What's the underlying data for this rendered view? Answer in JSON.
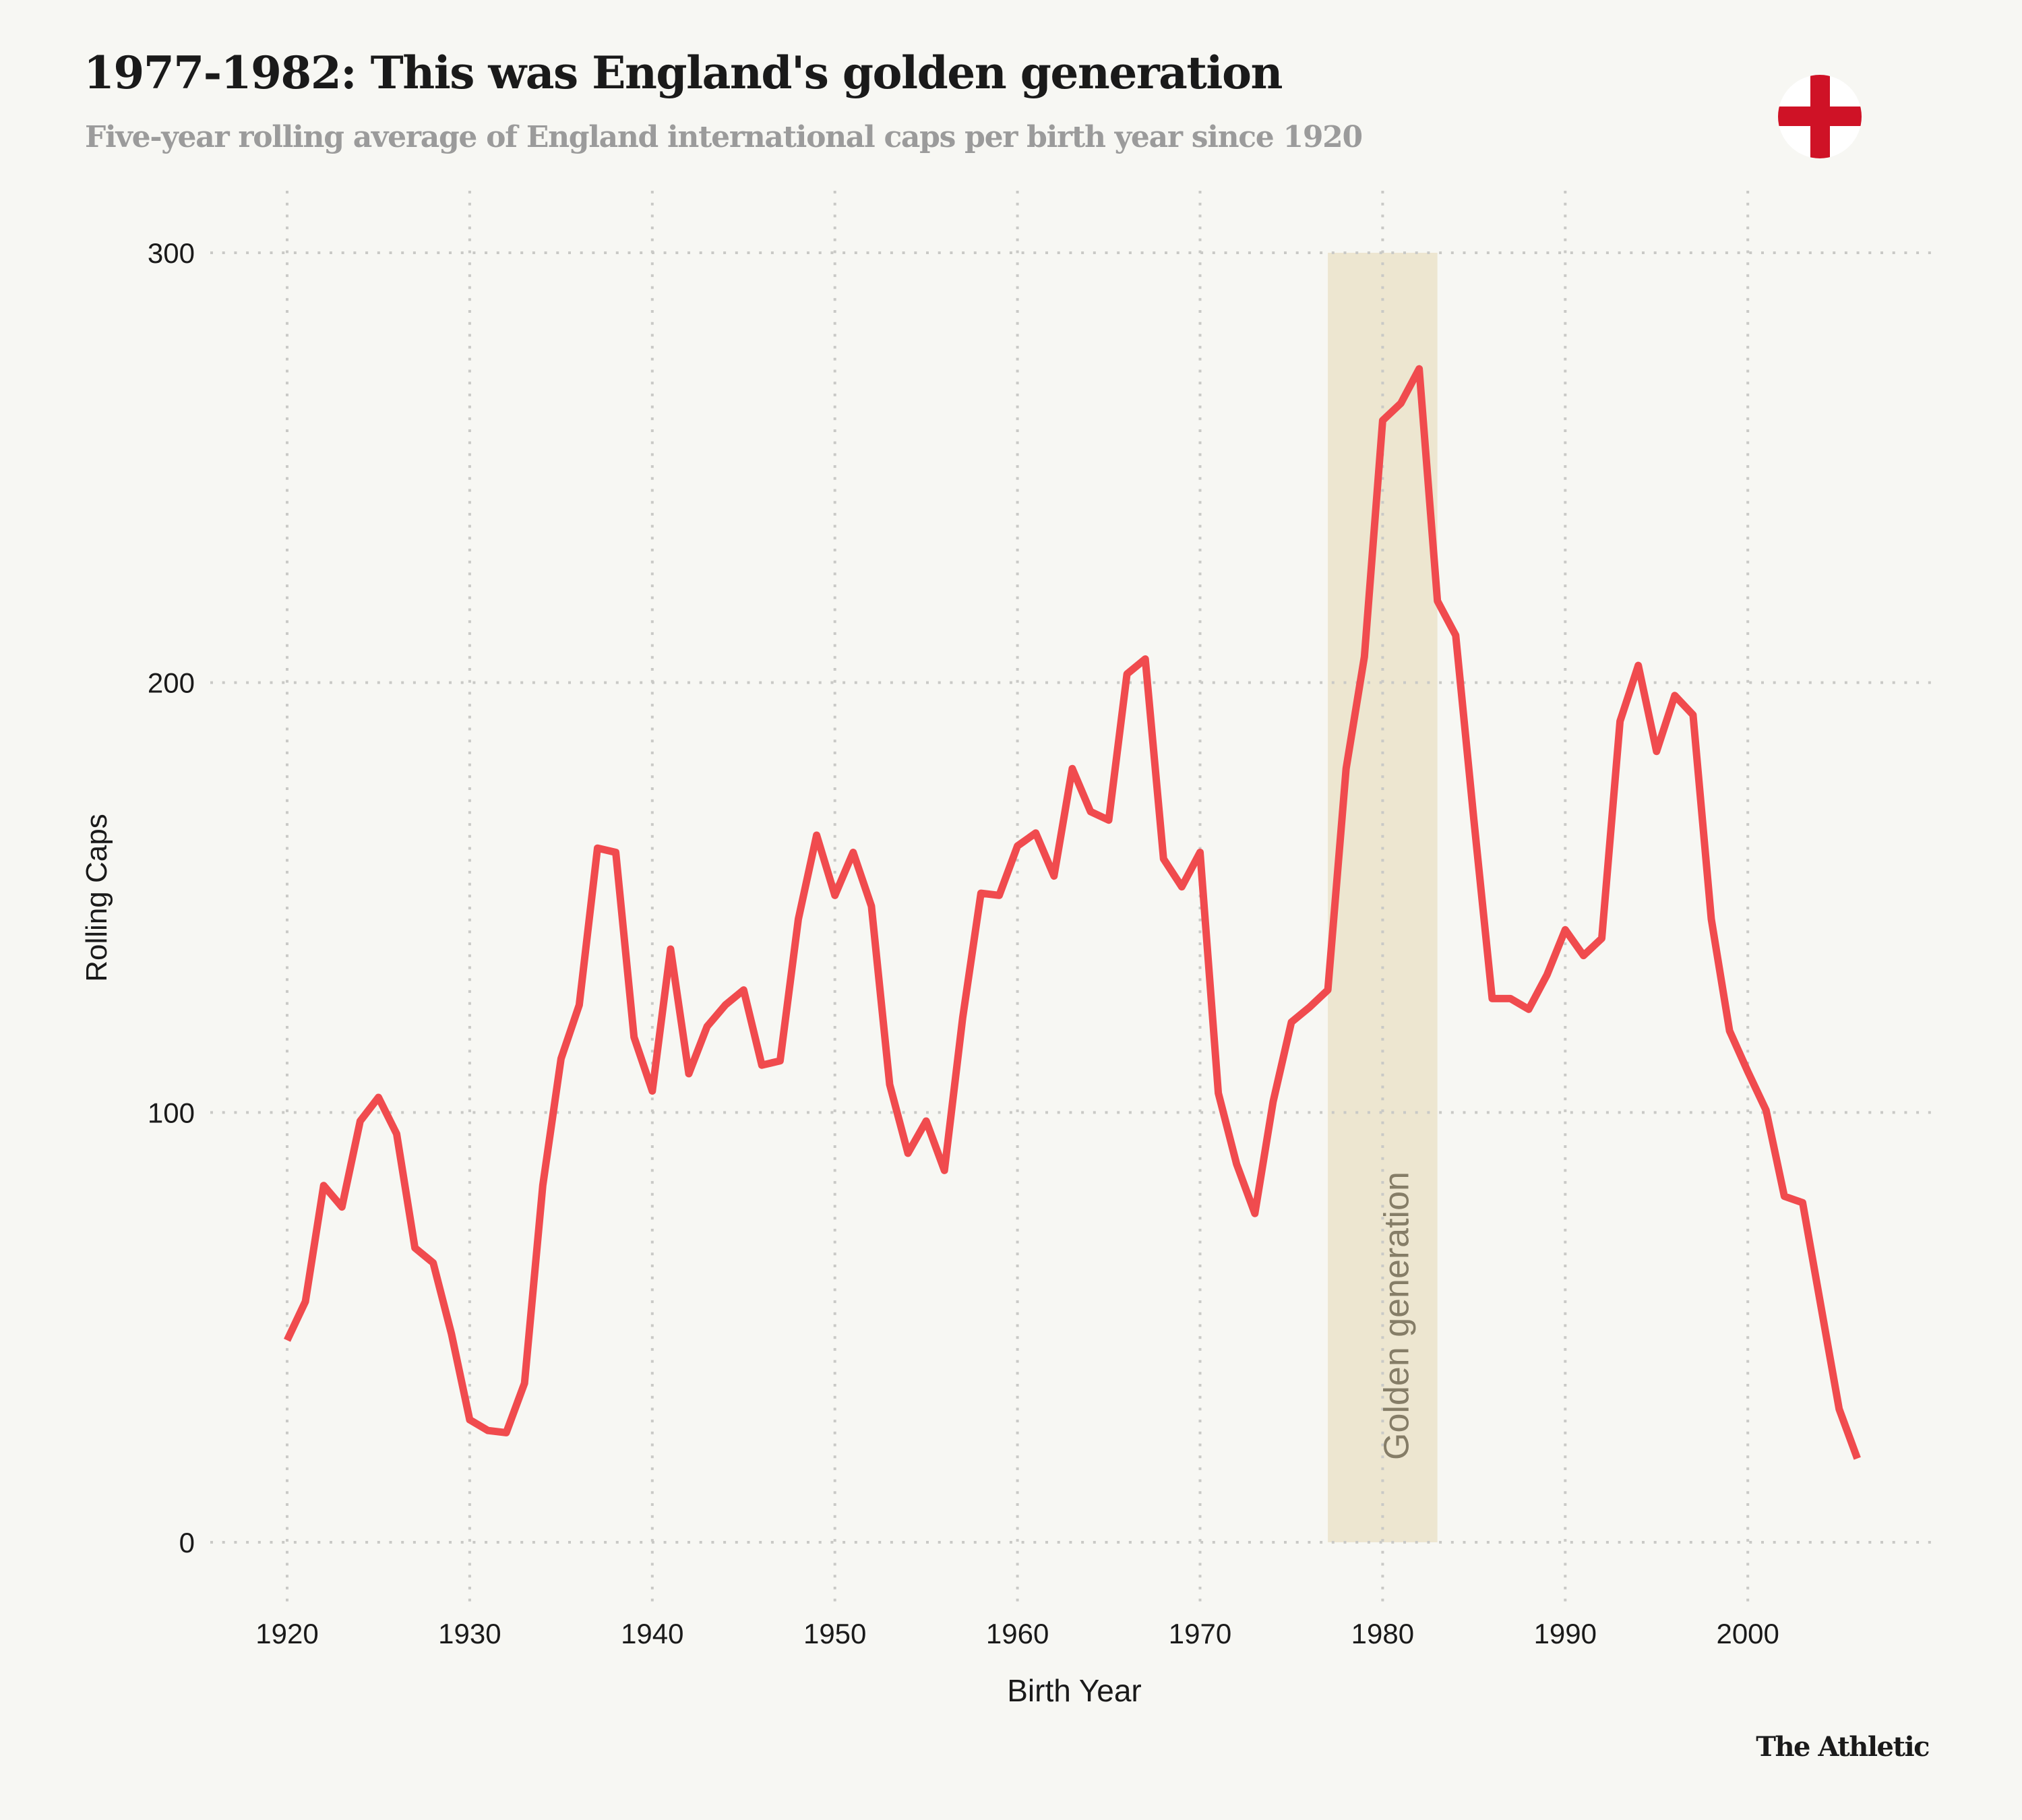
{
  "header": {
    "title": "1977-1982: This was England's golden generation",
    "subtitle": "Five-year rolling average of England international caps per birth year since 1920",
    "flag_icon": "england-flag-icon"
  },
  "footer": {
    "brand": "The Athletic"
  },
  "colors": {
    "background": "#f7f7f3",
    "line": "#f04b4e",
    "highlight_band": "#ede6d0",
    "highlight_label": "#857d67",
    "grid": "#c9c9c6",
    "flag_red": "#cf1226",
    "subtitle": "#9b9b9b"
  },
  "chart_data": {
    "type": "line",
    "title": "1977-1982: This was England's golden generation",
    "subtitle": "Five-year rolling average of England international caps per birth year since 1920",
    "xlabel": "Birth Year",
    "ylabel": "Rolling Caps",
    "xlim": [
      1920,
      2010
    ],
    "ylim": [
      0,
      300
    ],
    "x_ticks": [
      1920,
      1930,
      1940,
      1950,
      1960,
      1970,
      1980,
      1990,
      2000
    ],
    "y_ticks": [
      0,
      100,
      200,
      300
    ],
    "grid": true,
    "grid_style": "dotted",
    "legend": "none",
    "annotations": [
      {
        "type": "band",
        "x_start": 1977,
        "x_end": 1983,
        "label": "Golden generation"
      }
    ],
    "series": [
      {
        "name": "Rolling Caps",
        "x": [
          1920,
          1921,
          1922,
          1923,
          1924,
          1925,
          1926,
          1927,
          1928,
          1929,
          1930,
          1931,
          1932,
          1933,
          1934,
          1935,
          1936,
          1937,
          1938,
          1939,
          1940,
          1941,
          1942,
          1943,
          1944,
          1945,
          1946,
          1947,
          1948,
          1949,
          1950,
          1951,
          1952,
          1953,
          1954,
          1955,
          1956,
          1957,
          1958,
          1959,
          1960,
          1961,
          1962,
          1963,
          1964,
          1965,
          1966,
          1967,
          1968,
          1969,
          1970,
          1971,
          1972,
          1973,
          1974,
          1975,
          1976,
          1977,
          1978,
          1979,
          1980,
          1981,
          1982,
          1983,
          1984,
          1985,
          1986,
          1987,
          1988,
          1989,
          1990,
          1991,
          1992,
          1993,
          1994,
          1995,
          1996,
          1997,
          1998,
          1999,
          2000,
          2001,
          2002,
          2003,
          2004,
          2005,
          2006
        ],
        "values": [
          47,
          56,
          83,
          78,
          98,
          103.5,
          95,
          68.5,
          65,
          48.5,
          28.5,
          26,
          25.5,
          37,
          83,
          112.5,
          125,
          161.5,
          160.5,
          117.5,
          105,
          138,
          109,
          120,
          125,
          128.5,
          111,
          112,
          145,
          164.5,
          150.5,
          160.5,
          148,
          106.5,
          90.5,
          98,
          86.5,
          122,
          151,
          150.5,
          162,
          165,
          155,
          180,
          170,
          168,
          202,
          205.5,
          159,
          152.5,
          160.5,
          104.5,
          88,
          76.5,
          102.5,
          121,
          124.5,
          128.5,
          180,
          206,
          261,
          265,
          273,
          219,
          211,
          168,
          126.5,
          126.5,
          124,
          132,
          142.5,
          136.5,
          140.5,
          191,
          204,
          184,
          197,
          192.5,
          145,
          119,
          109.5,
          100.5,
          80.5,
          79,
          55,
          31,
          19.5
        ]
      }
    ]
  }
}
